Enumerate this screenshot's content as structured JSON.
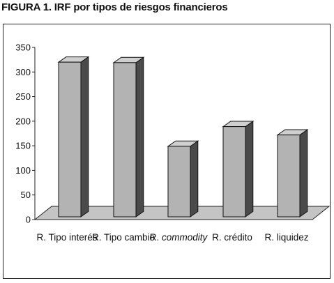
{
  "figure_title": "FIGURA 1. IRF por tipos de riesgos financieros",
  "chart_data": {
    "type": "bar",
    "style": "3d",
    "title": "FIGURA 1. IRF por tipos de riesgos financieros",
    "xlabel": "",
    "ylabel": "",
    "categories": [
      "R. Tipo interés",
      "R. Tipo cambio",
      "R. commodity",
      "R. crédito",
      "R. liquidez"
    ],
    "category_parts": [
      {
        "prefix": "R. Tipo interés",
        "italic": ""
      },
      {
        "prefix": "R. Tipo cambio",
        "italic": ""
      },
      {
        "prefix": "R. ",
        "italic": "commodity"
      },
      {
        "prefix": "R. crédito",
        "italic": ""
      },
      {
        "prefix": "R. liquidez",
        "italic": ""
      }
    ],
    "values": [
      320,
      319,
      149,
      189,
      172
    ],
    "ylim": [
      0,
      350
    ],
    "yticks": [
      0,
      50,
      100,
      150,
      200,
      250,
      300,
      350
    ],
    "grid": false,
    "legend": "none",
    "colors": {
      "bar_front": "#b3b3b3",
      "bar_top": "#cfcfcf",
      "bar_side": "#4a4a4a",
      "floor": "#c4c4c4"
    }
  }
}
